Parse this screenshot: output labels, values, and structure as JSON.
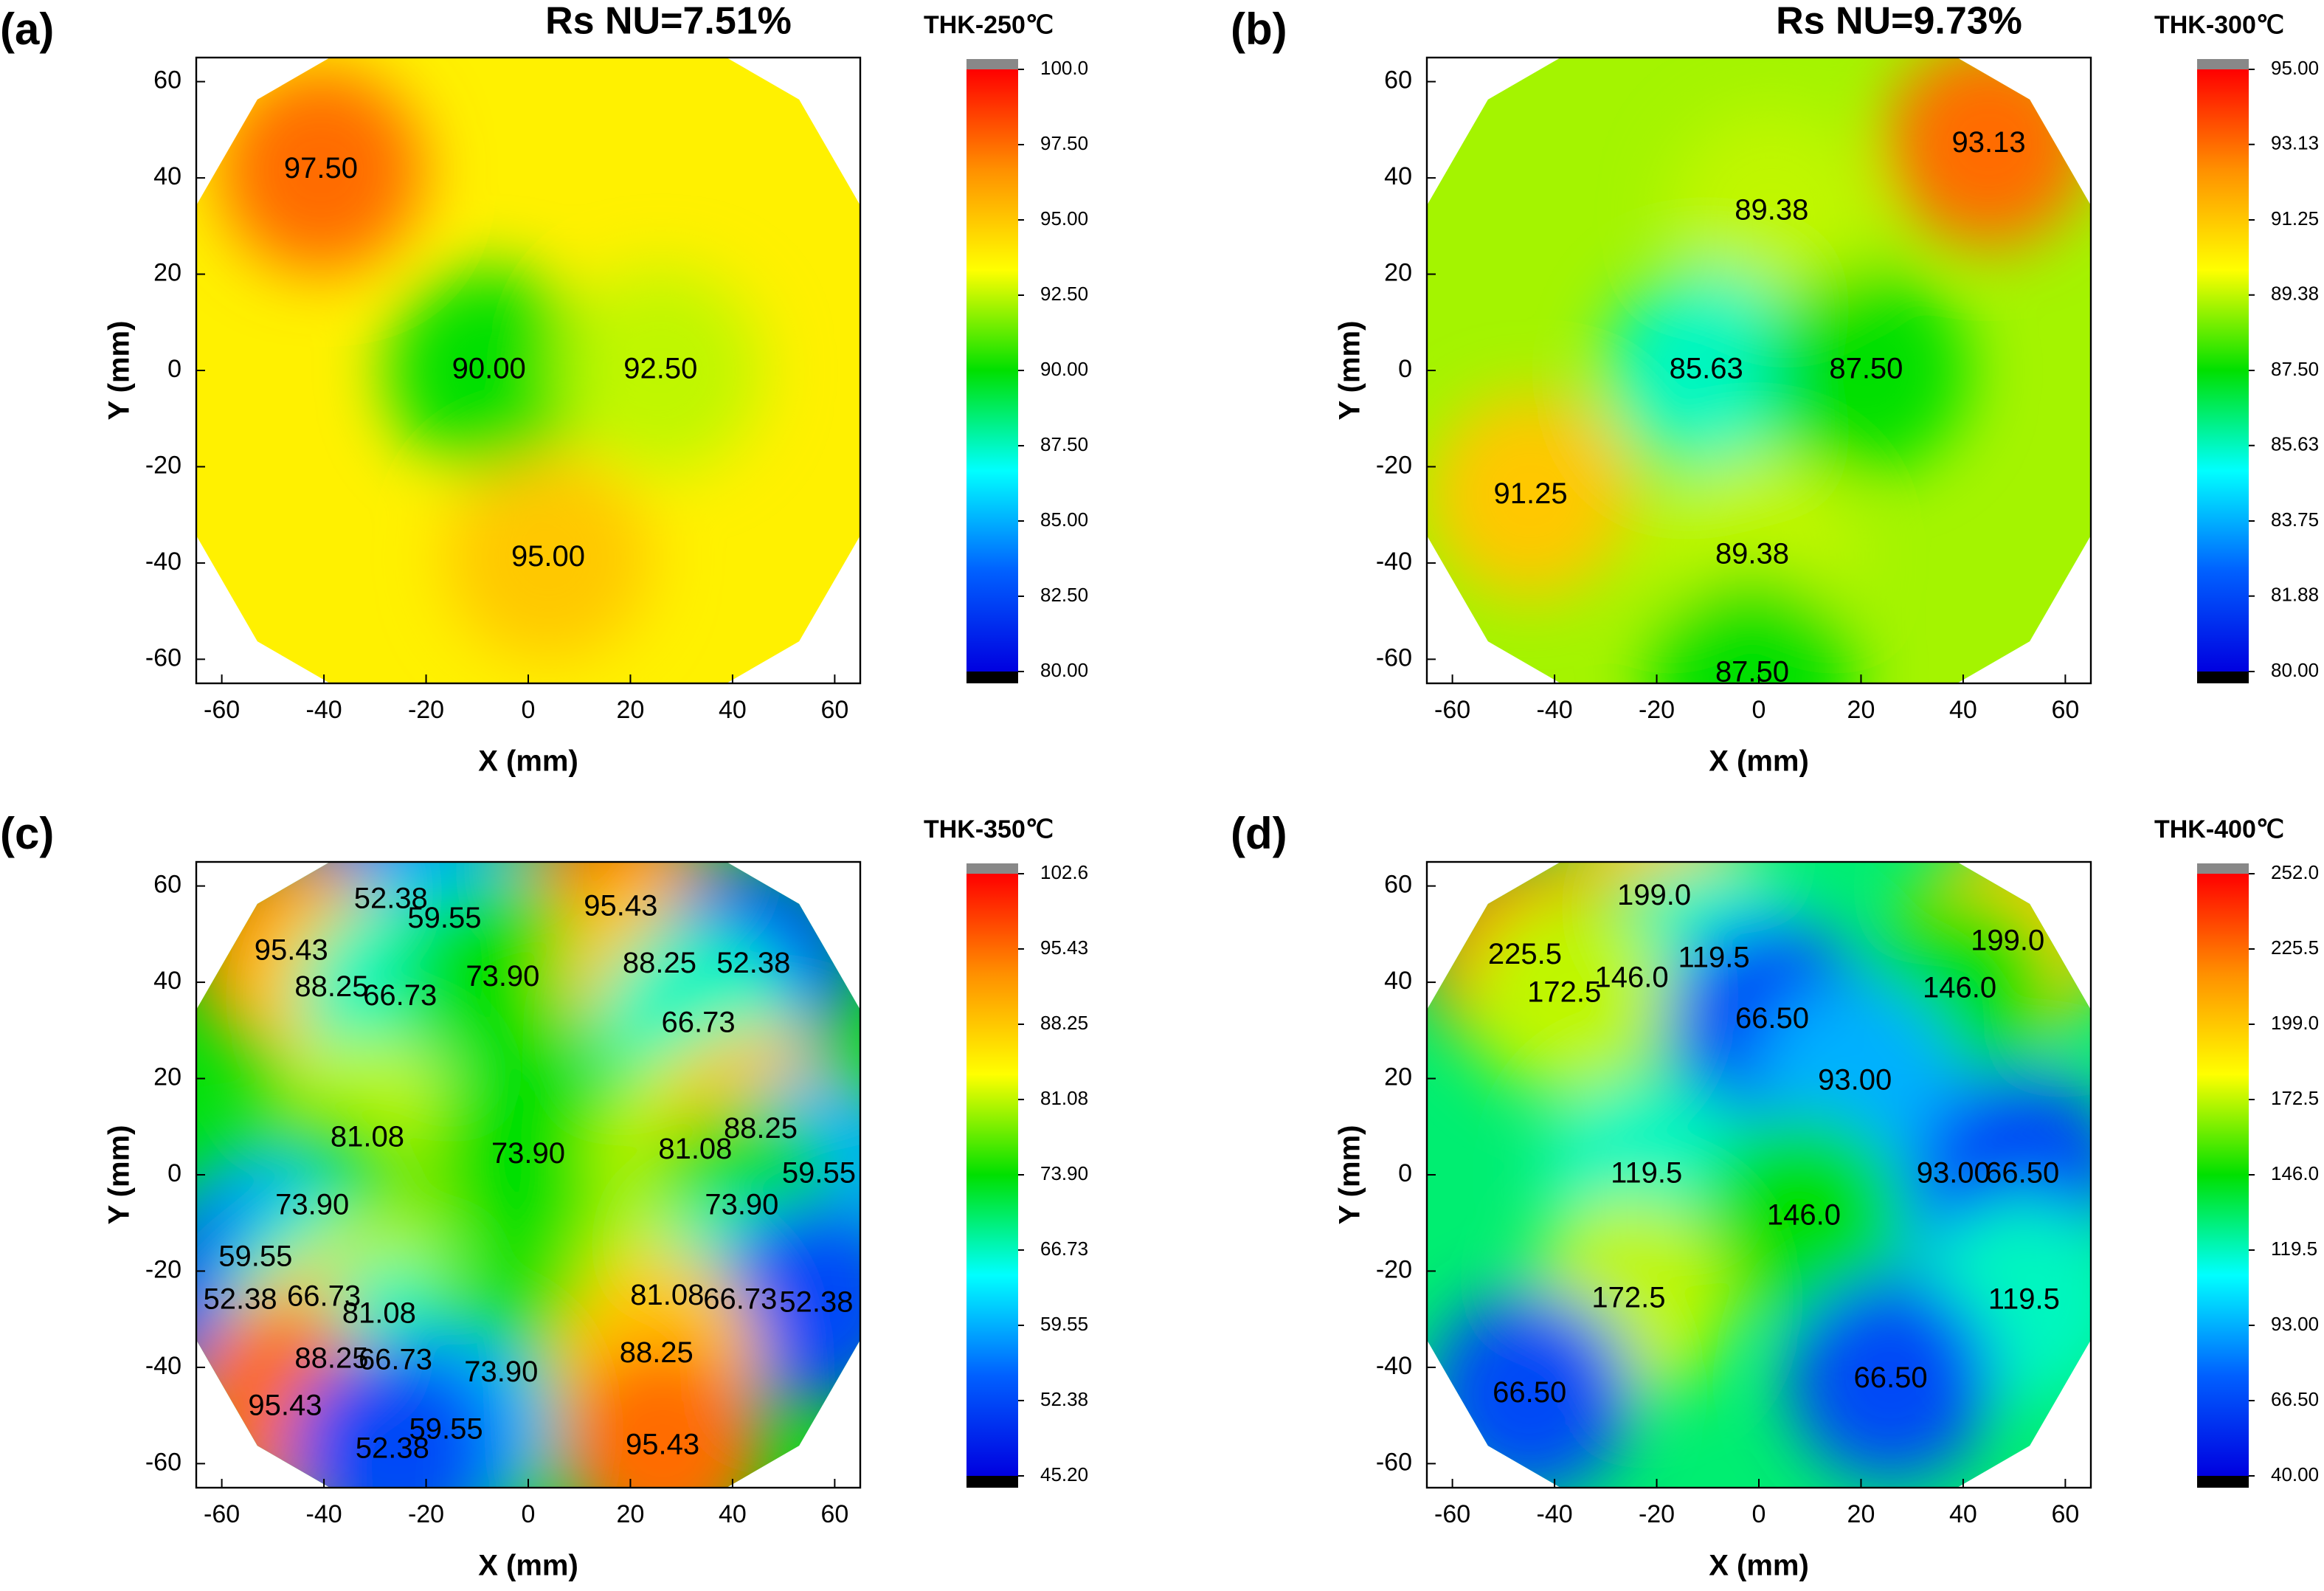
{
  "chart_data": [
    {
      "type": "contour",
      "panel": "(a)",
      "title": "Rs NU=7.51%",
      "colorbar_title": "THK-250℃",
      "xlabel": "X (mm)",
      "ylabel": "Y (mm)",
      "xlim": [
        -65,
        65
      ],
      "ylim": [
        -65,
        65
      ],
      "xticks": [
        -60,
        -40,
        -20,
        0,
        20,
        40,
        60
      ],
      "yticks": [
        -60,
        -40,
        -20,
        0,
        20,
        40,
        60
      ],
      "zlim": [
        80,
        100
      ],
      "zticks": [
        {
          "value": 80,
          "label": "80.00"
        },
        {
          "value": 82.5,
          "label": "82.50"
        },
        {
          "value": 85,
          "label": "85.00"
        },
        {
          "value": 87.5,
          "label": "87.50"
        },
        {
          "value": 90,
          "label": "90.00"
        },
        {
          "value": 92.5,
          "label": "92.50"
        },
        {
          "value": 95,
          "label": "95.00"
        },
        {
          "value": 97.5,
          "label": "97.50"
        },
        {
          "value": 100,
          "label": "100.0"
        }
      ],
      "colorscale": [
        "#0000e0",
        "#0060ff",
        "#00ffff",
        "#00e000",
        "#ffff00",
        "#ff9000",
        "#ff0000"
      ],
      "contour_labels": {
        "x": [
          -40.6,
          -7.7,
          25.9,
          3.9
        ],
        "y": [
          41.6,
          0,
          0,
          -39
        ],
        "values": [
          97.5,
          90,
          92.5,
          95
        ],
        "value_labels": [
          "97.50",
          "90.00",
          "92.50",
          "95.00"
        ]
      }
    },
    {
      "type": "contour",
      "panel": "(b)",
      "title": "Rs NU=9.73%",
      "colorbar_title": "THK-300℃",
      "xlabel": "X (mm)",
      "ylabel": "Y (mm)",
      "xlim": [
        -65,
        65
      ],
      "ylim": [
        -65,
        65
      ],
      "xticks": [
        -60,
        -40,
        -20,
        0,
        20,
        40,
        60
      ],
      "yticks": [
        -60,
        -40,
        -20,
        0,
        20,
        40,
        60
      ],
      "zlim": [
        80,
        95
      ],
      "zticks": [
        {
          "value": 80,
          "label": "80.00"
        },
        81.88,
        83.75,
        85.63,
        {
          "value": 87.5,
          "label": "87.50"
        },
        89.38,
        91.25,
        93.13,
        {
          "value": 95,
          "label": "95.00"
        }
      ],
      "colorscale": [
        "#0000e0",
        "#0060ff",
        "#00ffff",
        "#00e000",
        "#ffff00",
        "#ff9000",
        "#ff0000"
      ],
      "contour_labels": {
        "x": [
          45,
          2.5,
          -10.3,
          21,
          -44.7,
          -1.3,
          -1.3
        ],
        "y": [
          47,
          33,
          0,
          0,
          -26,
          -38.5,
          -63
        ],
        "values": [
          93.13,
          89.38,
          85.63,
          87.5,
          91.25,
          89.38,
          87.5
        ],
        "value_labels": [
          "93.13",
          "89.38",
          "85.63",
          "87.50",
          "91.25",
          "89.38",
          "87.50"
        ]
      }
    },
    {
      "type": "contour",
      "panel": "(c)",
      "colorbar_title": "THK-350℃",
      "xlabel": "X (mm)",
      "ylabel": "Y (mm)",
      "xlim": [
        -65,
        65
      ],
      "ylim": [
        -65,
        65
      ],
      "xticks": [
        -60,
        -40,
        -20,
        0,
        20,
        40,
        60
      ],
      "yticks": [
        -60,
        -40,
        -20,
        0,
        20,
        40,
        60
      ],
      "zlim": [
        45.2,
        102.6
      ],
      "zticks": [
        {
          "value": 45.2,
          "label": "45.20"
        },
        52.38,
        59.55,
        66.73,
        {
          "value": 73.9,
          "label": "73.90"
        },
        81.08,
        88.25,
        95.43,
        102.6
      ],
      "colorscale": [
        "#0000e0",
        "#0060ff",
        "#00ffff",
        "#00e000",
        "#ffff00",
        "#ff9000",
        "#ff0000"
      ],
      "contour_labels": {
        "x": [
          -26.9,
          -16.4,
          18.1,
          -46.4,
          -38.5,
          -25.1,
          -5,
          25.7,
          44.1,
          33.3,
          -31.5,
          0,
          32.7,
          45.5,
          56.9,
          41.8,
          -42.3,
          -53.4,
          -56.4,
          -40,
          -29.2,
          27.2,
          41.5,
          56.4,
          -38.5,
          -26,
          -5.3,
          25.1,
          -47.6,
          -16.1,
          -26.6,
          26.3
        ],
        "y": [
          57,
          53,
          55.5,
          46.3,
          38.7,
          36.9,
          40.9,
          43.6,
          43.6,
          31.3,
          7.5,
          4.1,
          5,
          9.3,
          0,
          -6.6,
          -6.6,
          -17.3,
          -26.2,
          -25.6,
          -29.1,
          -25.4,
          -26.2,
          -26.8,
          -38.5,
          -38.8,
          -41.3,
          -37.3,
          -48.3,
          -53.2,
          -57.2,
          -56.4
        ],
        "values": [
          52.38,
          59.55,
          95.43,
          95.43,
          88.25,
          66.73,
          73.9,
          88.25,
          52.38,
          66.73,
          81.08,
          73.9,
          81.08,
          88.25,
          59.55,
          73.9,
          73.9,
          59.55,
          52.38,
          66.73,
          81.08,
          81.08,
          66.73,
          52.38,
          88.25,
          66.73,
          73.9,
          88.25,
          95.43,
          59.55,
          52.38,
          95.43
        ],
        "value_labels": [
          "52.38",
          "59.55",
          "95.43",
          "95.43",
          "88.25",
          "66.73",
          "73.90",
          "88.25",
          "52.38",
          "66.73",
          "81.08",
          "73.90",
          "81.08",
          "88.25",
          "59.55",
          "73.90",
          "73.90",
          "59.55",
          "52.38",
          "66.73",
          "81.08",
          "81.08",
          "66.73",
          "52.38",
          "88.25",
          "66.73",
          "73.90",
          "88.25",
          "95.43",
          "59.55",
          "52.38",
          "95.43"
        ]
      }
    },
    {
      "type": "contour",
      "panel": "(d)",
      "colorbar_title": "THK-400℃",
      "xlabel": "X (mm)",
      "ylabel": "Y (mm)",
      "xlim": [
        -65,
        65
      ],
      "ylim": [
        -65,
        65
      ],
      "xticks": [
        -60,
        -40,
        -20,
        0,
        20,
        40,
        60
      ],
      "yticks": [
        -60,
        -40,
        -20,
        0,
        20,
        40,
        60
      ],
      "zlim": [
        40,
        252
      ],
      "zticks": [
        {
          "value": 40,
          "label": "40.00"
        },
        {
          "value": 66.5,
          "label": "66.50"
        },
        {
          "value": 93,
          "label": "93.00"
        },
        119.5,
        {
          "value": 146,
          "label": "146.0"
        },
        172.5,
        {
          "value": 199,
          "label": "199.0"
        },
        225.5,
        {
          "value": 252,
          "label": "252.0"
        }
      ],
      "colorscale": [
        "#0000e0",
        "#0060ff",
        "#00ffff",
        "#00e000",
        "#ffff00",
        "#ff9000",
        "#ff0000"
      ],
      "contour_labels": {
        "x": [
          -20.5,
          -45.8,
          -24.9,
          -8.8,
          -38.1,
          48.7,
          39.3,
          2.6,
          18.8,
          -22,
          38.1,
          51.6,
          8.8,
          -25.5,
          51.9,
          25.8,
          -44.9
        ],
        "y": [
          57.7,
          45.5,
          40.6,
          44.8,
          37.6,
          48.3,
          38.5,
          32.1,
          19.3,
          0,
          0,
          0,
          -8.7,
          -25.9,
          -26.2,
          -42.5,
          -45.6
        ],
        "values": [
          199,
          225.5,
          146,
          119.5,
          172.5,
          199,
          146,
          66.5,
          93,
          119.5,
          93,
          66.5,
          146,
          172.5,
          119.5,
          66.5,
          66.5
        ],
        "value_labels": [
          "199.0",
          "225.5",
          "146.0",
          "119.5",
          "172.5",
          "199.0",
          "146.0",
          "66.50",
          "93.00",
          "119.5",
          "93.00",
          "66.50",
          "146.0",
          "172.5",
          "119.5",
          "66.50",
          "66.50"
        ]
      }
    }
  ]
}
